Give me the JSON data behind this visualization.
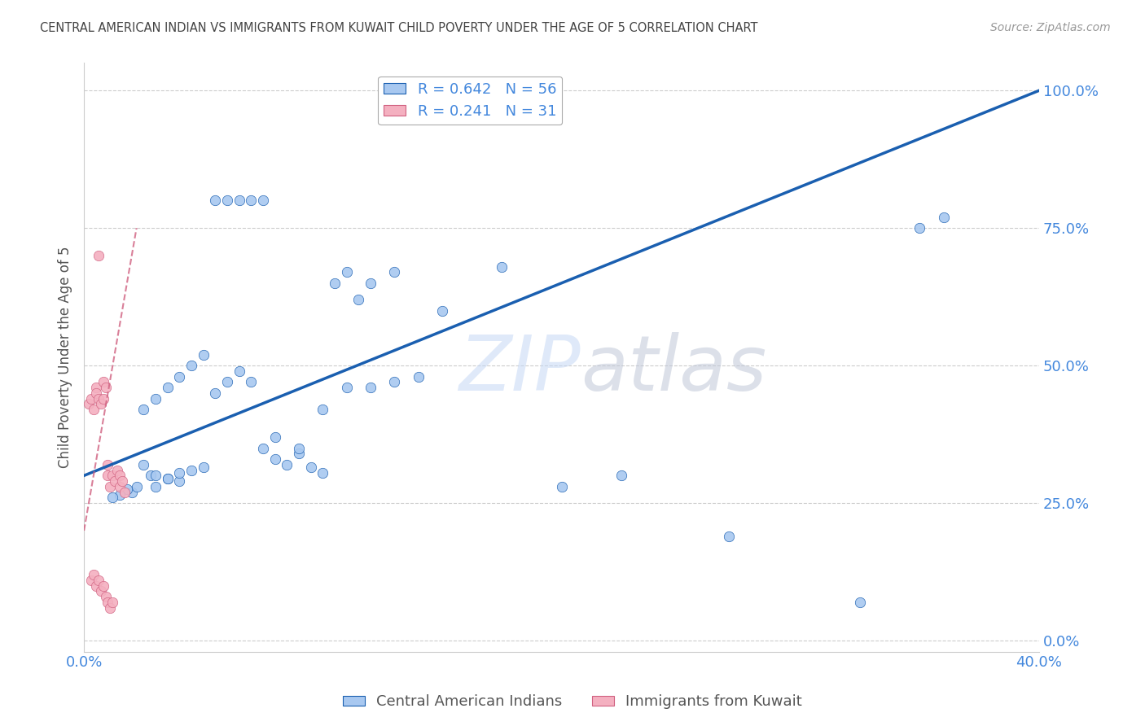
{
  "title": "CENTRAL AMERICAN INDIAN VS IMMIGRANTS FROM KUWAIT CHILD POVERTY UNDER THE AGE OF 5 CORRELATION CHART",
  "source": "Source: ZipAtlas.com",
  "ylabel": "Child Poverty Under the Age of 5",
  "xlim": [
    0.0,
    0.4
  ],
  "ylim": [
    -0.02,
    1.05
  ],
  "blue_R": 0.642,
  "blue_N": 56,
  "pink_R": 0.241,
  "pink_N": 31,
  "blue_scatter_x": [
    0.025,
    0.028,
    0.03,
    0.035,
    0.04,
    0.02,
    0.022,
    0.018,
    0.015,
    0.012,
    0.03,
    0.035,
    0.04,
    0.045,
    0.05,
    0.055,
    0.06,
    0.065,
    0.07,
    0.075,
    0.08,
    0.085,
    0.09,
    0.095,
    0.1,
    0.105,
    0.11,
    0.115,
    0.12,
    0.13,
    0.025,
    0.03,
    0.035,
    0.04,
    0.045,
    0.05,
    0.055,
    0.06,
    0.065,
    0.07,
    0.075,
    0.08,
    0.09,
    0.1,
    0.11,
    0.12,
    0.13,
    0.14,
    0.15,
    0.175,
    0.2,
    0.225,
    0.27,
    0.325,
    0.35,
    0.36
  ],
  "blue_scatter_y": [
    0.32,
    0.3,
    0.28,
    0.295,
    0.29,
    0.27,
    0.28,
    0.275,
    0.265,
    0.26,
    0.3,
    0.295,
    0.305,
    0.31,
    0.315,
    0.8,
    0.8,
    0.8,
    0.8,
    0.8,
    0.33,
    0.32,
    0.34,
    0.315,
    0.305,
    0.65,
    0.67,
    0.62,
    0.65,
    0.67,
    0.42,
    0.44,
    0.46,
    0.48,
    0.5,
    0.52,
    0.45,
    0.47,
    0.49,
    0.47,
    0.35,
    0.37,
    0.35,
    0.42,
    0.46,
    0.46,
    0.47,
    0.48,
    0.6,
    0.68,
    0.28,
    0.3,
    0.19,
    0.07,
    0.75,
    0.77
  ],
  "pink_scatter_x": [
    0.002,
    0.003,
    0.004,
    0.005,
    0.005,
    0.006,
    0.007,
    0.008,
    0.008,
    0.009,
    0.01,
    0.01,
    0.011,
    0.012,
    0.013,
    0.014,
    0.015,
    0.015,
    0.016,
    0.017,
    0.003,
    0.004,
    0.005,
    0.006,
    0.007,
    0.008,
    0.009,
    0.01,
    0.011,
    0.012,
    0.006
  ],
  "pink_scatter_y": [
    0.43,
    0.44,
    0.42,
    0.46,
    0.45,
    0.44,
    0.43,
    0.47,
    0.44,
    0.46,
    0.3,
    0.32,
    0.28,
    0.3,
    0.29,
    0.31,
    0.3,
    0.28,
    0.29,
    0.27,
    0.11,
    0.12,
    0.1,
    0.11,
    0.09,
    0.1,
    0.08,
    0.07,
    0.06,
    0.07,
    0.7
  ],
  "blue_line_x": [
    0.0,
    0.4
  ],
  "blue_line_y": [
    0.3,
    1.0
  ],
  "pink_line_x": [
    0.0,
    0.022
  ],
  "pink_line_y": [
    0.2,
    0.75
  ],
  "watermark_zip": "ZIP",
  "watermark_atlas": "atlas",
  "legend_label_blue": "Central American Indians",
  "legend_label_pink": "Immigrants from Kuwait",
  "bg_color": "#ffffff",
  "scatter_blue_color": "#a8c8f0",
  "scatter_pink_color": "#f4b0c0",
  "line_blue_color": "#1a5fb0",
  "line_pink_color": "#d06080",
  "grid_color": "#cccccc",
  "title_color": "#444444",
  "tick_label_color": "#4488dd",
  "axis_label_color": "#555555",
  "ytick_values": [
    0.0,
    0.25,
    0.5,
    0.75,
    1.0
  ],
  "ytick_labels": [
    "0.0%",
    "25.0%",
    "50.0%",
    "75.0%",
    "100.0%"
  ],
  "xtick_values": [
    0.0,
    0.4
  ],
  "xtick_labels": [
    "0.0%",
    "40.0%"
  ]
}
